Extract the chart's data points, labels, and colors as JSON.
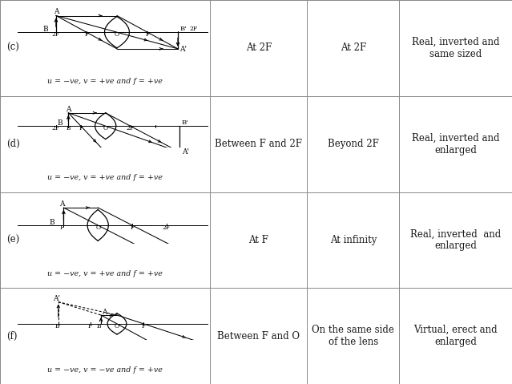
{
  "rows": [
    {
      "label": "(c)",
      "formula": "u = −ve, v = +ve and f = +ve",
      "col2": "At 2F",
      "col3": "At 2F",
      "col4": "Real, inverted and\nsame sized"
    },
    {
      "label": "(d)",
      "formula": "u = −ve, v = +ve and f = +ve",
      "col2": "Between F and 2F",
      "col3": "Beyond 2F",
      "col4": "Real, inverted and\nenlarged"
    },
    {
      "label": "(e)",
      "formula": "u = −ve, v = +ve and f = +ve",
      "col2": "At F",
      "col3": "At infinity",
      "col4": "Real, inverted  and\nenlarged"
    },
    {
      "label": "(f)",
      "formula": "u = −ve, v = −ve and f = +ve",
      "col2": "Between F and O",
      "col3": "On the same side\nof the lens",
      "col4": "Virtual, erect and\nenlarged"
    }
  ],
  "col_bounds": [
    0.0,
    0.41,
    0.6,
    0.78,
    1.0
  ],
  "row_bounds": [
    1.0,
    0.75,
    0.5,
    0.25,
    0.0
  ],
  "bg_color": "#ffffff",
  "text_color": "#1a1a1a",
  "line_color": "#888888"
}
